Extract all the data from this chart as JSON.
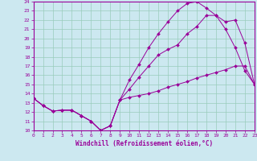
{
  "xlabel": "Windchill (Refroidissement éolien,°C)",
  "bg_color": "#cce8f0",
  "line_color": "#990099",
  "grid_color": "#99ccbb",
  "xmin": 0,
  "xmax": 23,
  "ymin": 10,
  "ymax": 24,
  "line1_x": [
    0,
    1,
    2,
    3,
    4,
    5,
    6,
    7,
    8,
    9,
    10,
    11,
    12,
    13,
    14,
    15,
    16,
    17,
    18,
    19,
    20,
    21,
    22,
    23
  ],
  "line1_y": [
    13.5,
    12.7,
    12.1,
    12.2,
    12.2,
    11.6,
    11.0,
    10.0,
    10.5,
    13.3,
    13.6,
    13.8,
    14.0,
    14.3,
    14.7,
    15.0,
    15.3,
    15.7,
    16.0,
    16.3,
    16.6,
    17.0,
    17.0,
    15.0
  ],
  "line2_x": [
    0,
    1,
    2,
    3,
    4,
    5,
    6,
    7,
    8,
    9,
    10,
    11,
    12,
    13,
    14,
    15,
    16,
    17,
    18,
    19,
    20,
    21,
    22,
    23
  ],
  "line2_y": [
    13.5,
    12.7,
    12.1,
    12.2,
    12.2,
    11.6,
    11.0,
    10.0,
    10.5,
    13.3,
    14.5,
    15.8,
    17.0,
    18.2,
    18.8,
    19.3,
    20.5,
    21.3,
    22.5,
    22.5,
    21.8,
    22.0,
    19.5,
    15.0
  ],
  "line3_x": [
    0,
    1,
    2,
    3,
    4,
    5,
    6,
    7,
    8,
    9,
    10,
    11,
    12,
    13,
    14,
    15,
    16,
    17,
    18,
    19,
    20,
    21,
    22,
    23
  ],
  "line3_y": [
    13.5,
    12.7,
    12.1,
    12.2,
    12.2,
    11.6,
    11.0,
    10.0,
    10.5,
    13.3,
    15.5,
    17.2,
    19.0,
    20.5,
    21.8,
    23.0,
    23.8,
    24.0,
    23.3,
    22.5,
    21.0,
    19.0,
    16.5,
    15.0
  ]
}
